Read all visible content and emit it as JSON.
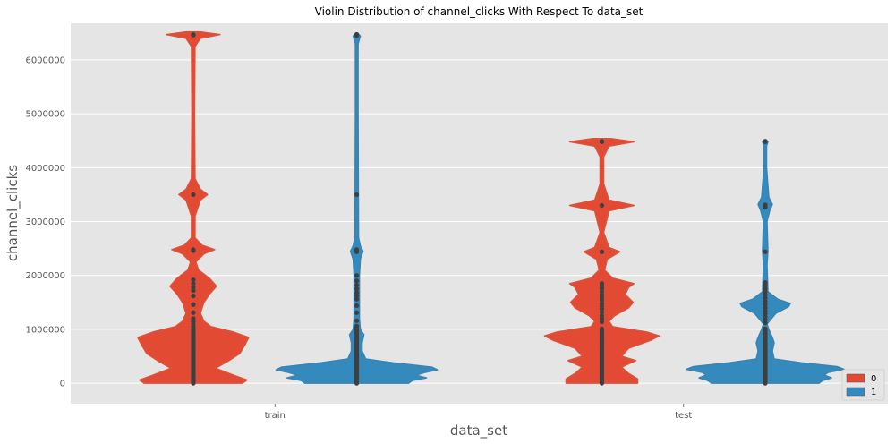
{
  "chart_data": {
    "type": "violin",
    "title": "Violin Distribution of channel_clicks With Respect To data_set",
    "xlabel": "data_set",
    "ylabel": "channel_clicks",
    "categories": [
      "train",
      "test"
    ],
    "ylim": [
      -380000,
      6680000
    ],
    "yticks": [
      0,
      1000000,
      2000000,
      3000000,
      4000000,
      5000000,
      6000000
    ],
    "grid": true,
    "legend": {
      "position": "bottom-right",
      "entries": [
        "0",
        "1"
      ]
    },
    "series": [
      {
        "name": "0",
        "color": "#E24A33",
        "outline": "#D9543C",
        "profiles": [
          [
            [
              0,
              55
            ],
            [
              60000,
              60
            ],
            [
              150000,
              45
            ],
            [
              280000,
              25
            ],
            [
              420000,
              40
            ],
            [
              550000,
              52
            ],
            [
              720000,
              58
            ],
            [
              850000,
              62
            ],
            [
              950000,
              45
            ],
            [
              1050000,
              20
            ],
            [
              1150000,
              12
            ],
            [
              1300000,
              8
            ],
            [
              1500000,
              12
            ],
            [
              1650000,
              18
            ],
            [
              1800000,
              26
            ],
            [
              1950000,
              18
            ],
            [
              2100000,
              6
            ],
            [
              2250000,
              3
            ],
            [
              2400000,
              12
            ],
            [
              2480000,
              24
            ],
            [
              2560000,
              10
            ],
            [
              2700000,
              2
            ],
            [
              3100000,
              2
            ],
            [
              3400000,
              8
            ],
            [
              3500000,
              16
            ],
            [
              3600000,
              8
            ],
            [
              3800000,
              2
            ],
            [
              5000000,
              1.5
            ],
            [
              6250000,
              2
            ],
            [
              6400000,
              8
            ],
            [
              6470000,
              30
            ],
            [
              6520000,
              8
            ]
          ],
          [
            [
              0,
              40
            ],
            [
              80000,
              40
            ],
            [
              180000,
              30
            ],
            [
              300000,
              22
            ],
            [
              420000,
              38
            ],
            [
              500000,
              22
            ],
            [
              650000,
              30
            ],
            [
              800000,
              55
            ],
            [
              880000,
              64
            ],
            [
              950000,
              50
            ],
            [
              1050000,
              12
            ],
            [
              1150000,
              8
            ],
            [
              1250000,
              14
            ],
            [
              1400000,
              30
            ],
            [
              1500000,
              35
            ],
            [
              1650000,
              26
            ],
            [
              1780000,
              30
            ],
            [
              1850000,
              36
            ],
            [
              1950000,
              12
            ],
            [
              2100000,
              3
            ],
            [
              2300000,
              6
            ],
            [
              2440000,
              20
            ],
            [
              2520000,
              8
            ],
            [
              2800000,
              2
            ],
            [
              3200000,
              8
            ],
            [
              3300000,
              36
            ],
            [
              3400000,
              8
            ],
            [
              3700000,
              2
            ],
            [
              4200000,
              2
            ],
            [
              4400000,
              8
            ],
            [
              4480000,
              36
            ],
            [
              4540000,
              10
            ]
          ]
        ],
        "points": [
          [
            0,
            25000,
            50000,
            80000,
            110000,
            140000,
            170000,
            200000,
            230000,
            260000,
            290000,
            320000,
            350000,
            380000,
            410000,
            440000,
            470000,
            500000,
            530000,
            560000,
            590000,
            620000,
            650000,
            680000,
            710000,
            740000,
            770000,
            800000,
            830000,
            860000,
            890000,
            920000,
            950000,
            980000,
            1010000,
            1050000,
            1100000,
            1150000,
            1200000,
            1310000,
            1460000,
            1620000,
            1720000,
            1780000,
            1850000,
            1920000,
            2460000,
            2480000,
            3500000,
            6460000,
            6470000
          ],
          [
            0,
            25000,
            50000,
            80000,
            110000,
            140000,
            170000,
            200000,
            230000,
            260000,
            290000,
            320000,
            350000,
            380000,
            410000,
            440000,
            470000,
            500000,
            530000,
            560000,
            590000,
            620000,
            650000,
            680000,
            710000,
            740000,
            770000,
            800000,
            830000,
            860000,
            890000,
            920000,
            950000,
            980000,
            1010000,
            1140000,
            1200000,
            1250000,
            1320000,
            1380000,
            1430000,
            1480000,
            1540000,
            1590000,
            1640000,
            1700000,
            1760000,
            1800000,
            1850000,
            2440000,
            3300000,
            4480000,
            4490000
          ]
        ]
      },
      {
        "name": "1",
        "color": "#348ABD",
        "outline": "#3B83B0",
        "profiles": [
          [
            [
              0,
              58
            ],
            [
              50000,
              62
            ],
            [
              100000,
              78
            ],
            [
              150000,
              66
            ],
            [
              200000,
              76
            ],
            [
              250000,
              90
            ],
            [
              300000,
              84
            ],
            [
              380000,
              40
            ],
            [
              450000,
              10
            ],
            [
              600000,
              6
            ],
            [
              750000,
              6
            ],
            [
              900000,
              8
            ],
            [
              1000000,
              4
            ],
            [
              1200000,
              3
            ],
            [
              1500000,
              3
            ],
            [
              2000000,
              3
            ],
            [
              2300000,
              4
            ],
            [
              2450000,
              7
            ],
            [
              2550000,
              4
            ],
            [
              2700000,
              2
            ],
            [
              5000000,
              1.5
            ],
            [
              6300000,
              1.5
            ],
            [
              6440000,
              4
            ],
            [
              6500000,
              1
            ]
          ],
          [
            [
              0,
              60
            ],
            [
              50000,
              64
            ],
            [
              100000,
              74
            ],
            [
              150000,
              66
            ],
            [
              200000,
              70
            ],
            [
              260000,
              88
            ],
            [
              310000,
              80
            ],
            [
              380000,
              40
            ],
            [
              450000,
              10
            ],
            [
              600000,
              8
            ],
            [
              750000,
              10
            ],
            [
              850000,
              8
            ],
            [
              1000000,
              4
            ],
            [
              1100000,
              2
            ],
            [
              1300000,
              12
            ],
            [
              1420000,
              26
            ],
            [
              1480000,
              28
            ],
            [
              1560000,
              14
            ],
            [
              1700000,
              3
            ],
            [
              2200000,
              2
            ],
            [
              2450000,
              3
            ],
            [
              3000000,
              2
            ],
            [
              3200000,
              5
            ],
            [
              3320000,
              8
            ],
            [
              3450000,
              4
            ],
            [
              4000000,
              1.5
            ],
            [
              4400000,
              1.5
            ],
            [
              4480000,
              3
            ],
            [
              4520000,
              1
            ]
          ]
        ],
        "points": [
          [
            0,
            25000,
            50000,
            80000,
            110000,
            140000,
            170000,
            200000,
            230000,
            260000,
            290000,
            320000,
            350000,
            380000,
            410000,
            440000,
            470000,
            500000,
            530000,
            560000,
            590000,
            620000,
            650000,
            680000,
            710000,
            740000,
            770000,
            800000,
            830000,
            860000,
            890000,
            920000,
            950000,
            980000,
            1010000,
            1060000,
            1160000,
            1310000,
            1440000,
            1560000,
            1620000,
            1680000,
            1750000,
            1820000,
            1900000,
            2000000,
            2440000,
            2480000,
            3500000,
            6450000,
            6470000
          ],
          [
            0,
            25000,
            50000,
            80000,
            110000,
            140000,
            170000,
            200000,
            230000,
            260000,
            290000,
            320000,
            350000,
            380000,
            410000,
            440000,
            470000,
            500000,
            530000,
            560000,
            590000,
            620000,
            650000,
            680000,
            710000,
            740000,
            770000,
            800000,
            830000,
            860000,
            890000,
            920000,
            950000,
            980000,
            1010000,
            1120000,
            1180000,
            1230000,
            1290000,
            1350000,
            1400000,
            1460000,
            1520000,
            1580000,
            1640000,
            1700000,
            1760000,
            1820000,
            1870000,
            2440000,
            3270000,
            3310000,
            4480000,
            4490000
          ]
        ]
      }
    ]
  }
}
